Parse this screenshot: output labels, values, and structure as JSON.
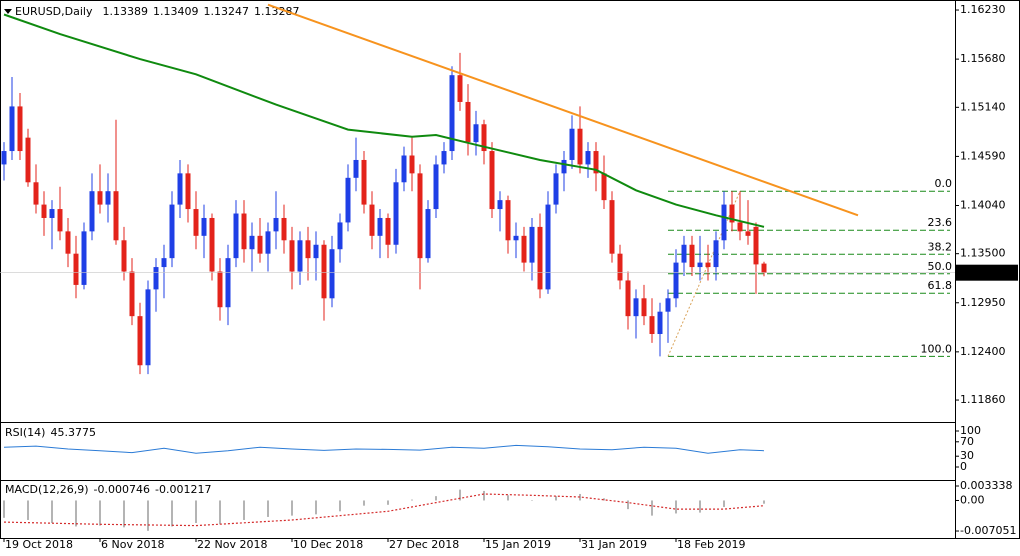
{
  "chart_data": {
    "type": "candlestick",
    "symbol": "EURUSD,Daily",
    "up_color": "#1f3fe6",
    "down_color": "#e3231b",
    "categories": [
      "19 Oct 2018",
      null,
      null,
      null,
      null,
      null,
      null,
      null,
      null,
      null,
      null,
      null,
      "6 Nov 2018",
      null,
      null,
      null,
      null,
      null,
      null,
      null,
      null,
      null,
      null,
      null,
      "22 Nov 2018",
      null,
      null,
      null,
      null,
      null,
      null,
      null,
      null,
      null,
      null,
      null,
      "10 Dec 2018",
      null,
      null,
      null,
      null,
      null,
      null,
      null,
      null,
      null,
      null,
      null,
      "27 Dec 2018",
      null,
      null,
      null,
      null,
      null,
      null,
      null,
      null,
      null,
      null,
      null,
      "15 Jan 2019",
      null,
      null,
      null,
      null,
      null,
      null,
      null,
      null,
      null,
      null,
      null,
      "31 Jan 2019",
      null,
      null,
      null,
      null,
      null,
      null,
      null,
      null,
      null,
      null,
      null,
      "18 Feb 2019",
      null,
      null,
      null,
      null,
      null,
      null,
      null,
      null,
      null,
      null,
      null
    ],
    "ohlc": [
      [
        1.145,
        1.1475,
        1.1432,
        1.1465
      ],
      [
        1.1465,
        1.1548,
        1.1455,
        1.1515
      ],
      [
        1.1515,
        1.153,
        1.1455,
        1.1465
      ],
      [
        1.148,
        1.149,
        1.1425,
        1.143
      ],
      [
        1.143,
        1.145,
        1.1395,
        1.1405
      ],
      [
        1.1405,
        1.142,
        1.137,
        1.139
      ],
      [
        1.139,
        1.141,
        1.1355,
        1.14
      ],
      [
        1.14,
        1.1425,
        1.1365,
        1.1375
      ],
      [
        1.1375,
        1.139,
        1.1335,
        1.135
      ],
      [
        1.135,
        1.137,
        1.13,
        1.1315
      ],
      [
        1.1315,
        1.1385,
        1.131,
        1.1375
      ],
      [
        1.1375,
        1.144,
        1.1365,
        1.142
      ],
      [
        1.142,
        1.145,
        1.1395,
        1.1405
      ],
      [
        1.1405,
        1.144,
        1.1385,
        1.142
      ],
      [
        1.142,
        1.15,
        1.136,
        1.1365
      ],
      [
        1.1365,
        1.138,
        1.132,
        1.133
      ],
      [
        1.133,
        1.1345,
        1.127,
        1.128
      ],
      [
        1.128,
        1.1295,
        1.1215,
        1.1225
      ],
      [
        1.1225,
        1.132,
        1.1215,
        1.131
      ],
      [
        1.131,
        1.1345,
        1.1285,
        1.1335
      ],
      [
        1.1335,
        1.136,
        1.13,
        1.1345
      ],
      [
        1.1345,
        1.142,
        1.1335,
        1.1405
      ],
      [
        1.1405,
        1.1455,
        1.139,
        1.144
      ],
      [
        1.144,
        1.145,
        1.1385,
        1.14
      ],
      [
        1.14,
        1.142,
        1.1355,
        1.137
      ],
      [
        1.137,
        1.1405,
        1.1345,
        1.139
      ],
      [
        1.139,
        1.1395,
        1.132,
        1.133
      ],
      [
        1.133,
        1.1345,
        1.1275,
        1.129
      ],
      [
        1.129,
        1.136,
        1.127,
        1.1345
      ],
      [
        1.1345,
        1.141,
        1.1335,
        1.1395
      ],
      [
        1.1395,
        1.141,
        1.134,
        1.1355
      ],
      [
        1.1355,
        1.1385,
        1.133,
        1.137
      ],
      [
        1.137,
        1.139,
        1.134,
        1.135
      ],
      [
        1.135,
        1.1385,
        1.133,
        1.1375
      ],
      [
        1.1375,
        1.142,
        1.1355,
        1.139
      ],
      [
        1.139,
        1.1405,
        1.135,
        1.1365
      ],
      [
        1.1365,
        1.138,
        1.131,
        1.133
      ],
      [
        1.133,
        1.1375,
        1.1315,
        1.1365
      ],
      [
        1.1365,
        1.138,
        1.132,
        1.1345
      ],
      [
        1.1345,
        1.1375,
        1.132,
        1.136
      ],
      [
        1.136,
        1.1365,
        1.1275,
        1.13
      ],
      [
        1.13,
        1.137,
        1.129,
        1.1355
      ],
      [
        1.1355,
        1.1395,
        1.134,
        1.1385
      ],
      [
        1.1385,
        1.145,
        1.1375,
        1.1435
      ],
      [
        1.1435,
        1.148,
        1.142,
        1.1455
      ],
      [
        1.1455,
        1.1465,
        1.1395,
        1.1405
      ],
      [
        1.1405,
        1.142,
        1.1355,
        1.137
      ],
      [
        1.137,
        1.14,
        1.1345,
        1.139
      ],
      [
        1.139,
        1.1395,
        1.1345,
        1.136
      ],
      [
        1.136,
        1.1445,
        1.135,
        1.143
      ],
      [
        1.143,
        1.147,
        1.142,
        1.146
      ],
      [
        1.146,
        1.148,
        1.142,
        1.144
      ],
      [
        1.144,
        1.145,
        1.131,
        1.1345
      ],
      [
        1.1345,
        1.141,
        1.134,
        1.14
      ],
      [
        1.14,
        1.146,
        1.139,
        1.145
      ],
      [
        1.145,
        1.1475,
        1.144,
        1.1465
      ],
      [
        1.1465,
        1.156,
        1.1455,
        1.155
      ],
      [
        1.155,
        1.1575,
        1.151,
        1.152
      ],
      [
        1.152,
        1.154,
        1.146,
        1.1475
      ],
      [
        1.1475,
        1.151,
        1.146,
        1.1495
      ],
      [
        1.1495,
        1.15,
        1.145,
        1.1465
      ],
      [
        1.1465,
        1.1475,
        1.139,
        1.14
      ],
      [
        1.14,
        1.142,
        1.1375,
        1.141
      ],
      [
        1.141,
        1.1415,
        1.135,
        1.1365
      ],
      [
        1.1365,
        1.1385,
        1.1345,
        1.137
      ],
      [
        1.137,
        1.138,
        1.133,
        1.134
      ],
      [
        1.134,
        1.139,
        1.132,
        1.138
      ],
      [
        1.138,
        1.1395,
        1.13,
        1.131
      ],
      [
        1.131,
        1.142,
        1.1305,
        1.1405
      ],
      [
        1.1405,
        1.145,
        1.1395,
        1.144
      ],
      [
        1.144,
        1.1465,
        1.142,
        1.1455
      ],
      [
        1.1455,
        1.1505,
        1.1445,
        1.149
      ],
      [
        1.149,
        1.1515,
        1.144,
        1.145
      ],
      [
        1.145,
        1.1475,
        1.1435,
        1.1465
      ],
      [
        1.1465,
        1.1475,
        1.142,
        1.144
      ],
      [
        1.144,
        1.146,
        1.14,
        1.141
      ],
      [
        1.141,
        1.142,
        1.134,
        1.135
      ],
      [
        1.135,
        1.136,
        1.131,
        1.132
      ],
      [
        1.132,
        1.133,
        1.1265,
        1.128
      ],
      [
        1.128,
        1.131,
        1.1255,
        1.13
      ],
      [
        1.13,
        1.1315,
        1.127,
        1.128
      ],
      [
        1.128,
        1.13,
        1.125,
        1.126
      ],
      [
        1.126,
        1.1295,
        1.1235,
        1.1285
      ],
      [
        1.1285,
        1.131,
        1.125,
        1.13
      ],
      [
        1.13,
        1.1355,
        1.129,
        1.134
      ],
      [
        1.134,
        1.137,
        1.1325,
        1.136
      ],
      [
        1.136,
        1.137,
        1.1325,
        1.1335
      ],
      [
        1.1335,
        1.137,
        1.132,
        1.134
      ],
      [
        1.134,
        1.136,
        1.132,
        1.1335
      ],
      [
        1.1335,
        1.1375,
        1.132,
        1.1365
      ],
      [
        1.1365,
        1.142,
        1.1355,
        1.1405
      ],
      [
        1.1405,
        1.142,
        1.1375,
        1.1385
      ],
      [
        1.1385,
        1.142,
        1.1365,
        1.1375
      ],
      [
        1.1375,
        1.141,
        1.136,
        1.137
      ],
      [
        1.138,
        1.1385,
        1.1305,
        1.1338
      ],
      [
        1.13389,
        1.13409,
        1.13247,
        1.13287
      ]
    ],
    "ylim": [
      1.11614,
      1.1632
    ],
    "yticks": [
      {
        "value": 1.1623,
        "label": "1.16230"
      },
      {
        "value": 1.1568,
        "label": "1.15680"
      },
      {
        "value": 1.1514,
        "label": "1.15140"
      },
      {
        "value": 1.1459,
        "label": "1.14590"
      },
      {
        "value": 1.1404,
        "label": "1.14040"
      },
      {
        "value": 1.135,
        "label": "1.13500"
      },
      {
        "value": 1.1295,
        "label": "1.12950"
      },
      {
        "value": 1.124,
        "label": "1.12400"
      },
      {
        "value": 1.1186,
        "label": "1.11860"
      }
    ],
    "ma": {
      "color": "#0f8a0f",
      "x": [
        0,
        7,
        17,
        24,
        34,
        43,
        51,
        54,
        59,
        67,
        74,
        79,
        84,
        89,
        95
      ],
      "values": [
        1.1618,
        1.1596,
        1.1568,
        1.1551,
        1.1517,
        1.1489,
        1.1481,
        1.1483,
        1.1472,
        1.1455,
        1.1444,
        1.1421,
        1.1405,
        1.1393,
        1.138
      ]
    },
    "trendline": {
      "color": "#f7931e",
      "x": [
        33,
        106.75
      ],
      "values": [
        1.1629,
        1.1393
      ]
    },
    "fibonacci": {
      "color": "#1a8a1a",
      "anchor": {
        "color": "#d9a35a",
        "x": [
          83,
          92
        ],
        "values": [
          1.1235,
          1.142
        ]
      },
      "levels": [
        {
          "label": "0.0",
          "price": 1.142
        },
        {
          "label": "23.6",
          "price": 1.13763
        },
        {
          "label": "38.2",
          "price": 1.13493
        },
        {
          "label": "50.0",
          "price": 1.13275
        },
        {
          "label": "61.8",
          "price": 1.13057
        },
        {
          "label": "100.0",
          "price": 1.1235
        }
      ]
    },
    "rsi": {
      "label": "RSI(14)",
      "color": "#2b7bd6",
      "ylim": [
        0,
        100
      ],
      "yticks": [
        100,
        70,
        30,
        0
      ],
      "x": [
        0,
        4,
        8,
        12,
        16,
        20,
        24,
        28,
        32,
        36,
        40,
        44,
        48,
        52,
        56,
        60,
        64,
        68,
        72,
        76,
        80,
        84,
        88,
        92,
        95
      ],
      "values": [
        55,
        58,
        50,
        45,
        40,
        52,
        38,
        45,
        55,
        50,
        46,
        50,
        49,
        47,
        55,
        52,
        60,
        56,
        50,
        48,
        55,
        52,
        38,
        48,
        45.3775
      ]
    },
    "macd": {
      "label": "MACD(12,26,9)",
      "ylim": [
        -0.0082,
        0.0038
      ],
      "yticks": [
        0.003338,
        {
          "value": 0,
          "label": "0.00"
        },
        -0.007051
      ],
      "histogram": {
        "color": "#b4b4b4",
        "x": [
          0,
          3,
          6,
          9,
          12,
          15,
          18,
          21,
          24,
          27,
          30,
          33,
          36,
          39,
          42,
          45,
          48,
          51,
          54,
          57,
          60,
          63,
          66,
          69,
          72,
          75,
          78,
          81,
          84,
          87,
          90,
          95
        ],
        "values": [
          -0.004,
          -0.0045,
          -0.0052,
          -0.006,
          -0.0058,
          -0.0062,
          -0.007,
          -0.006,
          -0.0052,
          -0.0055,
          -0.0045,
          -0.0038,
          -0.0035,
          -0.0032,
          -0.0025,
          -0.0012,
          -0.001,
          0.0002,
          0.001,
          0.0025,
          0.0022,
          0.0012,
          0,
          0.001,
          0.0015,
          0.0005,
          -0.002,
          -0.0035,
          -0.003,
          -0.0028,
          -0.0015,
          -0.000746
        ]
      },
      "signal": {
        "color": "#d42a2a",
        "x": [
          0,
          12,
          24,
          36,
          48,
          54,
          60,
          66,
          72,
          78,
          84,
          90,
          95
        ],
        "values": [
          -0.005,
          -0.0055,
          -0.0058,
          -0.0045,
          -0.0025,
          -0.0005,
          0.0015,
          0.0012,
          0.0008,
          -0.0005,
          -0.002,
          -0.002,
          -0.001217
        ]
      }
    }
  }
}
